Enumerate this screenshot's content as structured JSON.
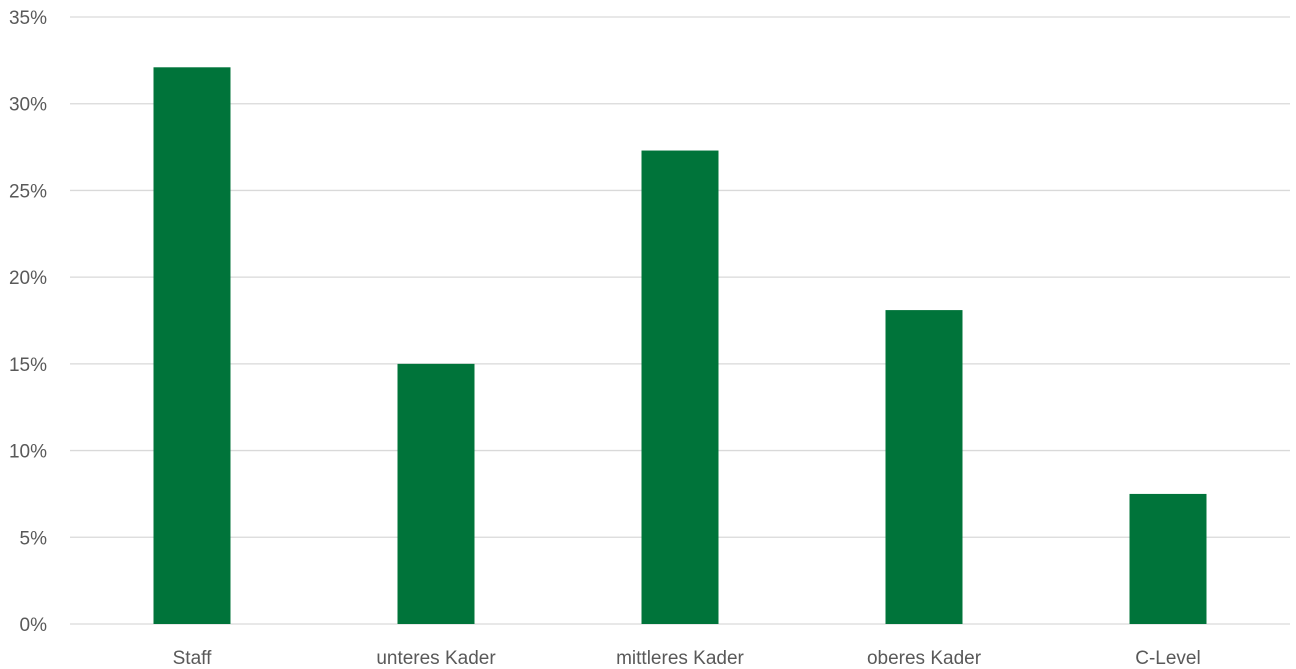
{
  "chart_data": {
    "type": "bar",
    "title": "",
    "xlabel": "",
    "ylabel": "",
    "categories": [
      "Staff",
      "unteres Kader",
      "mittleres Kader",
      "oberes Kader",
      "C-Level"
    ],
    "values": [
      32.1,
      15.0,
      27.3,
      18.1,
      7.5
    ],
    "ylim": [
      0,
      35
    ],
    "yticks": [
      0,
      5,
      10,
      15,
      20,
      25,
      30,
      35
    ],
    "ytick_labels": [
      "0%",
      "5%",
      "10%",
      "15%",
      "20%",
      "25%",
      "30%",
      "35%"
    ],
    "grid": true,
    "legend": "none",
    "bar_color": "#00743a"
  }
}
